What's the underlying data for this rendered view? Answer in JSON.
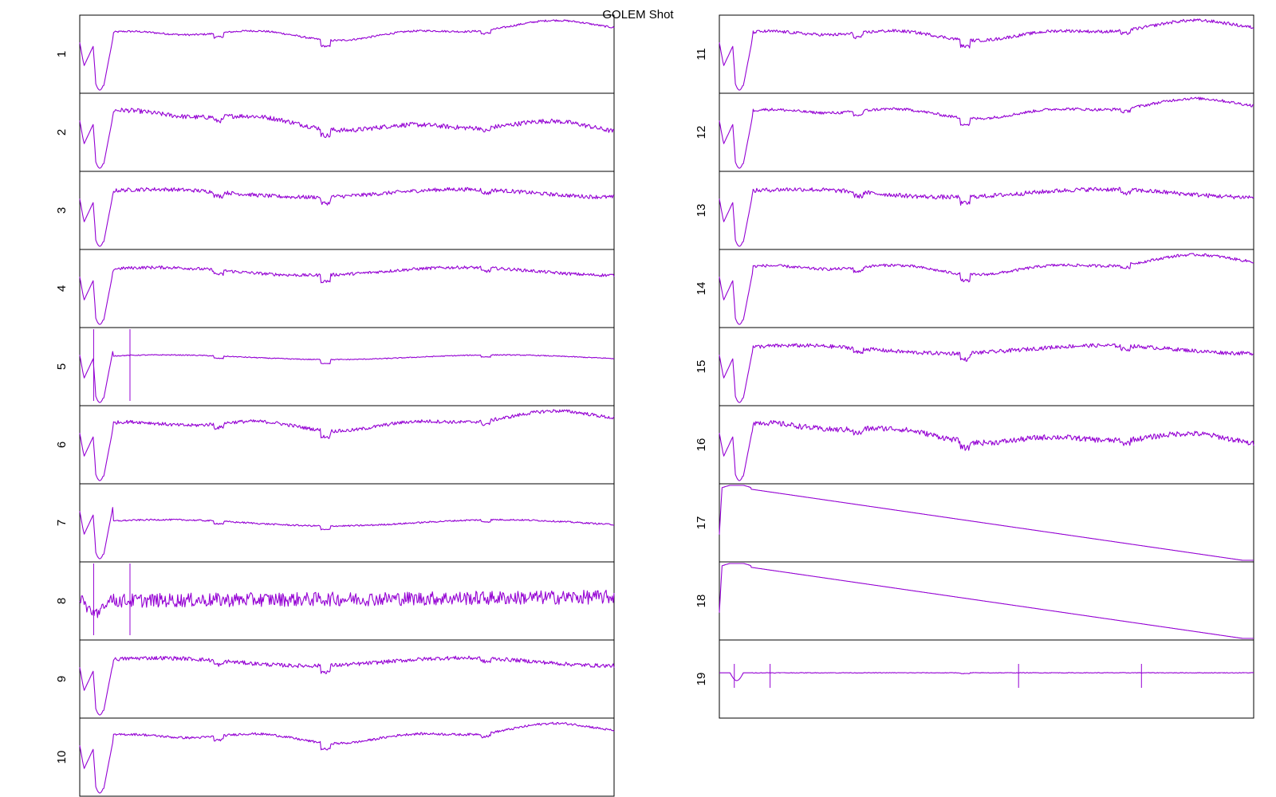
{
  "chart_data": {
    "type": "line",
    "title": "GOLEM Shot",
    "xlabel": "",
    "ylabel": "",
    "grid": false,
    "legend": "none",
    "line_color": "#9400d3",
    "panels": [
      {
        "label": "1",
        "column": "left",
        "shape": "plasma",
        "noise": 0.012
      },
      {
        "label": "2",
        "column": "left",
        "shape": "plasma_drift",
        "noise": 0.03
      },
      {
        "label": "3",
        "column": "left",
        "shape": "plasma_flat",
        "noise": 0.025
      },
      {
        "label": "4",
        "column": "left",
        "shape": "plasma_flat",
        "noise": 0.02
      },
      {
        "label": "5",
        "column": "left",
        "shape": "plasma_spiky",
        "noise": 0.006
      },
      {
        "label": "6",
        "column": "left",
        "shape": "plasma",
        "noise": 0.022
      },
      {
        "label": "7",
        "column": "left",
        "shape": "plasma_low",
        "noise": 0.01
      },
      {
        "label": "8",
        "column": "left",
        "shape": "oscillating",
        "noise": 0.1
      },
      {
        "label": "9",
        "column": "left",
        "shape": "plasma_flat",
        "noise": 0.025
      },
      {
        "label": "10",
        "column": "left",
        "shape": "plasma",
        "noise": 0.015
      },
      {
        "label": "11",
        "column": "right",
        "shape": "plasma",
        "noise": 0.02
      },
      {
        "label": "12",
        "column": "right",
        "shape": "plasma",
        "noise": 0.018
      },
      {
        "label": "13",
        "column": "right",
        "shape": "plasma_flat",
        "noise": 0.028
      },
      {
        "label": "14",
        "column": "right",
        "shape": "plasma",
        "noise": 0.018
      },
      {
        "label": "15",
        "column": "right",
        "shape": "plasma_flat",
        "noise": 0.025
      },
      {
        "label": "16",
        "column": "right",
        "shape": "plasma_drift",
        "noise": 0.035
      },
      {
        "label": "17",
        "column": "right",
        "shape": "ramp",
        "noise": 0.0
      },
      {
        "label": "18",
        "column": "right",
        "shape": "ramp",
        "noise": 0.0
      },
      {
        "label": "19",
        "column": "right",
        "shape": "flat_spikes",
        "noise": 0.004
      }
    ]
  }
}
